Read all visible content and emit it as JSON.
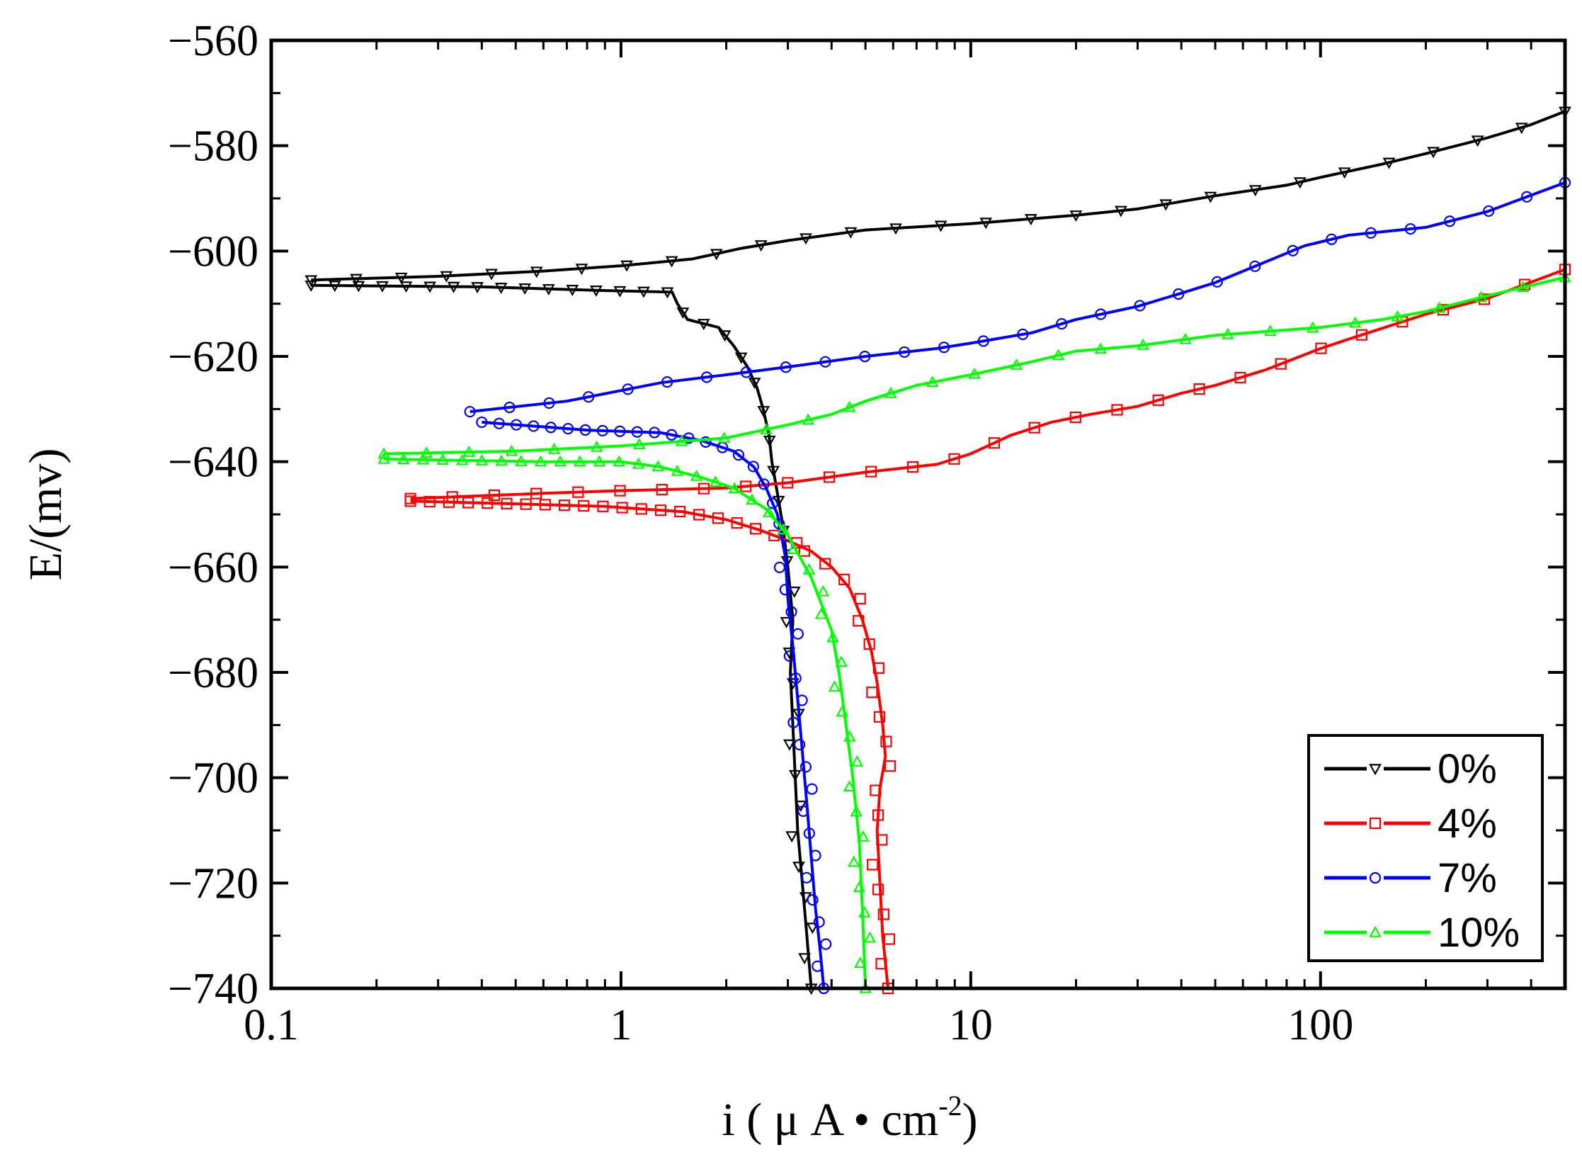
{
  "chart_data": {
    "type": "line",
    "title": "",
    "xlabel": "i ( μ A • cm",
    "xlabel_superscript": "-2",
    "xlabel_close": ")",
    "ylabel": "E/(mv)",
    "xscale": "log",
    "xlim": [
      0.1,
      500
    ],
    "ylim": [
      -740,
      -560
    ],
    "xticks": [
      0.1,
      1,
      10,
      100
    ],
    "xtick_labels": [
      "0.1",
      "1",
      "10",
      "100"
    ],
    "yticks": [
      -560,
      -580,
      -600,
      -620,
      -640,
      -660,
      -680,
      -700,
      -720,
      -740
    ],
    "ytick_labels": [
      "−560",
      "−580",
      "−600",
      "−620",
      "−640",
      "−660",
      "−680",
      "−700",
      "−720",
      "−740"
    ],
    "grid": false,
    "legend_position": "bottom-right",
    "series": [
      {
        "name": "0%",
        "color": "#000000",
        "marker": "triangle-down",
        "anodic": [
          [
            0.13,
            -605.5
          ],
          [
            0.3,
            -604.8
          ],
          [
            0.6,
            -603.8
          ],
          [
            1.0,
            -602.8
          ],
          [
            1.6,
            -601.5
          ],
          [
            2.2,
            -599.5
          ],
          [
            3.0,
            -598
          ],
          [
            5.0,
            -596
          ],
          [
            10,
            -594.8
          ],
          [
            20,
            -593.2
          ],
          [
            30,
            -592
          ],
          [
            50,
            -589.5
          ],
          [
            80,
            -587.5
          ],
          [
            100,
            -586
          ],
          [
            150,
            -583.5
          ],
          [
            200,
            -581.5
          ],
          [
            300,
            -578.5
          ],
          [
            400,
            -576
          ],
          [
            500,
            -573.5
          ]
        ],
        "cathodic": [
          [
            0.13,
            -606.5
          ],
          [
            0.4,
            -606.8
          ],
          [
            0.9,
            -607.5
          ],
          [
            1.4,
            -607.8
          ],
          [
            1.45,
            -610
          ],
          [
            1.55,
            -613
          ],
          [
            1.9,
            -614.5
          ],
          [
            2.1,
            -618
          ],
          [
            2.3,
            -622
          ],
          [
            2.45,
            -626
          ],
          [
            2.55,
            -630
          ],
          [
            2.65,
            -635
          ],
          [
            2.7,
            -640
          ],
          [
            2.8,
            -646
          ],
          [
            2.9,
            -652
          ],
          [
            3.0,
            -660
          ],
          [
            3.1,
            -670
          ],
          [
            3.05,
            -680
          ],
          [
            3.1,
            -690
          ],
          [
            3.15,
            -700
          ],
          [
            3.2,
            -710
          ],
          [
            3.3,
            -720
          ],
          [
            3.4,
            -730
          ],
          [
            3.5,
            -740
          ]
        ]
      },
      {
        "name": "4%",
        "color": "#ff0000",
        "marker": "square",
        "anodic": [
          [
            0.25,
            -647
          ],
          [
            0.6,
            -646
          ],
          [
            1.0,
            -645.5
          ],
          [
            2.0,
            -645
          ],
          [
            3.0,
            -644
          ],
          [
            5.0,
            -642
          ],
          [
            8.0,
            -640.5
          ],
          [
            10,
            -638.5
          ],
          [
            13,
            -635
          ],
          [
            17,
            -632.5
          ],
          [
            22,
            -631
          ],
          [
            30,
            -629.5
          ],
          [
            40,
            -627
          ],
          [
            50,
            -625.5
          ],
          [
            70,
            -622.5
          ],
          [
            100,
            -618.5
          ],
          [
            130,
            -616
          ],
          [
            200,
            -612
          ],
          [
            300,
            -609
          ],
          [
            500,
            -603.5
          ]
        ],
        "cathodic": [
          [
            0.25,
            -647.5
          ],
          [
            0.5,
            -648
          ],
          [
            0.9,
            -648.5
          ],
          [
            1.5,
            -649.5
          ],
          [
            2.0,
            -651
          ],
          [
            2.5,
            -653
          ],
          [
            3.0,
            -655
          ],
          [
            3.5,
            -657
          ],
          [
            4.0,
            -660
          ],
          [
            4.5,
            -664
          ],
          [
            4.9,
            -670
          ],
          [
            5.2,
            -676
          ],
          [
            5.4,
            -682
          ],
          [
            5.6,
            -690
          ],
          [
            5.7,
            -696
          ],
          [
            5.5,
            -702
          ],
          [
            5.4,
            -710
          ],
          [
            5.5,
            -720
          ],
          [
            5.6,
            -730
          ],
          [
            5.8,
            -740
          ]
        ]
      },
      {
        "name": "7%",
        "color": "#0000ff",
        "marker": "circle",
        "anodic": [
          [
            0.37,
            -630.5
          ],
          [
            0.7,
            -628.5
          ],
          [
            1.3,
            -625
          ],
          [
            2.0,
            -623.5
          ],
          [
            3.0,
            -622
          ],
          [
            5.0,
            -620
          ],
          [
            8.0,
            -618.5
          ],
          [
            10,
            -617.5
          ],
          [
            15,
            -615.5
          ],
          [
            20,
            -613
          ],
          [
            30,
            -610.5
          ],
          [
            40,
            -608
          ],
          [
            50,
            -606
          ],
          [
            70,
            -602
          ],
          [
            90,
            -599
          ],
          [
            120,
            -597
          ],
          [
            200,
            -595.5
          ],
          [
            300,
            -592.5
          ],
          [
            500,
            -587
          ]
        ],
        "cathodic": [
          [
            0.4,
            -632.5
          ],
          [
            0.8,
            -634
          ],
          [
            1.3,
            -634.5
          ],
          [
            1.7,
            -636
          ],
          [
            2.1,
            -638
          ],
          [
            2.4,
            -641
          ],
          [
            2.6,
            -645
          ],
          [
            2.8,
            -650
          ],
          [
            2.95,
            -658
          ],
          [
            3.0,
            -666
          ],
          [
            3.1,
            -675
          ],
          [
            3.2,
            -685
          ],
          [
            3.3,
            -695
          ],
          [
            3.4,
            -705
          ],
          [
            3.5,
            -715
          ],
          [
            3.6,
            -725
          ],
          [
            3.7,
            -732
          ],
          [
            3.8,
            -740
          ]
        ]
      },
      {
        "name": "10%",
        "color": "#00ff00",
        "marker": "triangle-up",
        "anodic": [
          [
            0.21,
            -638.5
          ],
          [
            0.5,
            -638
          ],
          [
            1.0,
            -637
          ],
          [
            2.0,
            -635.5
          ],
          [
            3.0,
            -633
          ],
          [
            4.0,
            -631
          ],
          [
            5.0,
            -628.5
          ],
          [
            7.0,
            -625.5
          ],
          [
            10,
            -623.5
          ],
          [
            15,
            -621
          ],
          [
            20,
            -619
          ],
          [
            30,
            -618
          ],
          [
            50,
            -616
          ],
          [
            100,
            -614.5
          ],
          [
            150,
            -613
          ],
          [
            200,
            -611.5
          ],
          [
            300,
            -608.5
          ],
          [
            500,
            -605
          ]
        ],
        "cathodic": [
          [
            0.21,
            -639.5
          ],
          [
            0.6,
            -640
          ],
          [
            1.0,
            -640
          ],
          [
            1.3,
            -641
          ],
          [
            1.7,
            -643
          ],
          [
            2.1,
            -645
          ],
          [
            2.6,
            -649
          ],
          [
            3.0,
            -654
          ],
          [
            3.5,
            -662
          ],
          [
            4.0,
            -672
          ],
          [
            4.2,
            -680
          ],
          [
            4.4,
            -690
          ],
          [
            4.6,
            -700
          ],
          [
            4.8,
            -712
          ],
          [
            4.9,
            -725
          ],
          [
            5.0,
            -740
          ]
        ]
      }
    ]
  }
}
